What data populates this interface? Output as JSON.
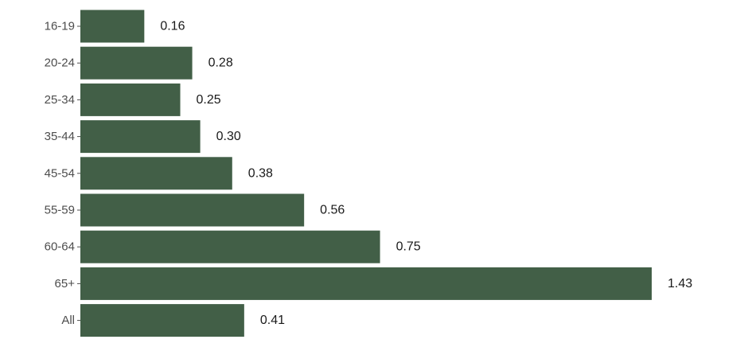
{
  "chart_data": {
    "type": "bar",
    "orientation": "horizontal",
    "categories": [
      "16-19",
      "20-24",
      "25-34",
      "35-44",
      "45-54",
      "55-59",
      "60-64",
      "65+",
      "All"
    ],
    "values": [
      0.16,
      0.28,
      0.25,
      0.3,
      0.38,
      0.56,
      0.75,
      1.43,
      0.41
    ],
    "value_labels": [
      "0.16",
      "0.28",
      "0.25",
      "0.30",
      "0.38",
      "0.56",
      "0.75",
      "1.43",
      "0.41"
    ],
    "title": "",
    "xlabel": "",
    "ylabel": "",
    "xlim": [
      0,
      1.43
    ],
    "grid": false,
    "legend": "none",
    "bar_color": "#425f47"
  }
}
